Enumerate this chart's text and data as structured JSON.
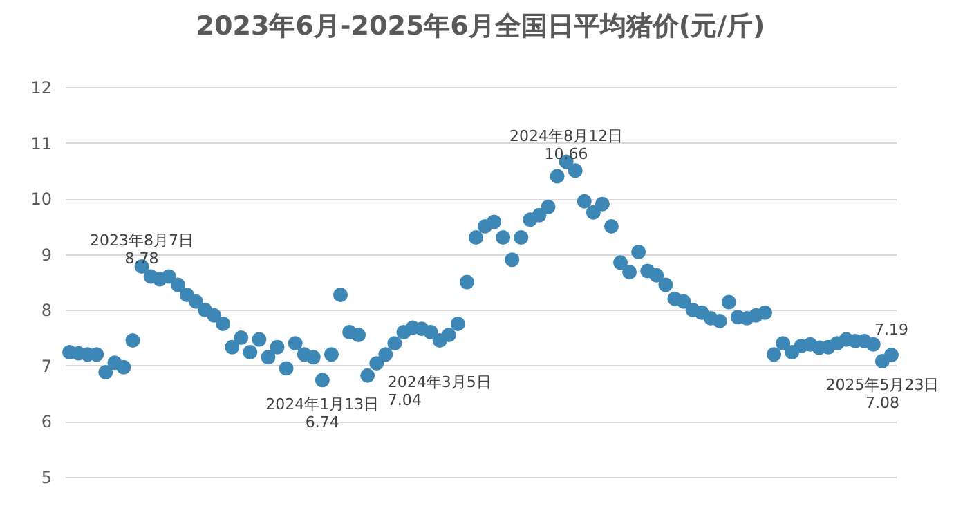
{
  "chart_data": {
    "type": "scatter",
    "title": "2023年6月-2025年6月全国日平均猪价(元/斤)",
    "categories": [
      null,
      null,
      null,
      null,
      null,
      null,
      null,
      null,
      null,
      null,
      null,
      null,
      null,
      null,
      null,
      null,
      null,
      null,
      null,
      null,
      null,
      null,
      null,
      null,
      null,
      null,
      null,
      null,
      null,
      null,
      null,
      null,
      null,
      null,
      null,
      null,
      null,
      null,
      null,
      null,
      null,
      null,
      null,
      null,
      null,
      null,
      null,
      null,
      null,
      null,
      null,
      null,
      null,
      null,
      null,
      null,
      null,
      null,
      null,
      null,
      null,
      null,
      null,
      null,
      null,
      null,
      null,
      null,
      null,
      null,
      null,
      null,
      null,
      null,
      null,
      null,
      null,
      null,
      null,
      null,
      null,
      null,
      null,
      null,
      null,
      null,
      null,
      null,
      null,
      null,
      null,
      null
    ],
    "values": [
      7.24,
      7.22,
      7.2,
      7.2,
      6.88,
      7.05,
      6.97,
      7.45,
      8.78,
      8.6,
      8.55,
      8.6,
      8.45,
      8.27,
      8.15,
      8.0,
      7.9,
      7.75,
      7.33,
      7.5,
      7.24,
      7.47,
      7.15,
      7.33,
      6.95,
      7.4,
      7.2,
      7.15,
      6.74,
      7.2,
      8.27,
      7.6,
      7.55,
      6.82,
      7.04,
      7.2,
      7.4,
      7.6,
      7.68,
      7.66,
      7.6,
      7.45,
      7.55,
      7.75,
      8.5,
      9.3,
      9.5,
      9.58,
      9.3,
      8.9,
      9.3,
      9.62,
      9.7,
      9.85,
      10.4,
      10.66,
      10.5,
      9.95,
      9.75,
      9.9,
      9.5,
      8.85,
      8.68,
      9.04,
      8.7,
      8.62,
      8.45,
      8.2,
      8.15,
      8.0,
      7.95,
      7.85,
      7.8,
      8.14,
      7.87,
      7.85,
      7.9,
      7.95,
      7.2,
      7.4,
      7.24,
      7.35,
      7.38,
      7.32,
      7.33,
      7.4,
      7.47,
      7.44,
      7.44,
      7.38,
      7.08,
      7.19
    ],
    "value_labels": [
      null,
      null,
      null,
      null,
      null,
      null,
      null,
      null,
      "2023年8月7日\n8.78",
      null,
      null,
      null,
      null,
      null,
      null,
      null,
      null,
      null,
      null,
      null,
      null,
      null,
      null,
      null,
      null,
      null,
      null,
      null,
      "2024年1月13日\n6.74",
      null,
      null,
      null,
      null,
      null,
      "2024年3月5日\n7.04",
      null,
      null,
      null,
      null,
      null,
      null,
      null,
      null,
      null,
      null,
      null,
      null,
      null,
      null,
      null,
      null,
      null,
      null,
      null,
      null,
      "2024年8月12日\n10.66",
      null,
      null,
      null,
      null,
      null,
      null,
      null,
      null,
      null,
      null,
      null,
      null,
      null,
      null,
      null,
      null,
      null,
      null,
      null,
      null,
      null,
      null,
      null,
      null,
      null,
      null,
      null,
      null,
      null,
      null,
      null,
      null,
      null,
      null,
      "2025年5月23日\n7.08",
      "7.19"
    ],
    "color": "#3d87b6",
    "marker": "circle",
    "ylim": [
      5,
      12
    ],
    "yticks": [
      5,
      6,
      7,
      8,
      9,
      10,
      11,
      12
    ],
    "grid": "y",
    "tick_labels": "y"
  }
}
